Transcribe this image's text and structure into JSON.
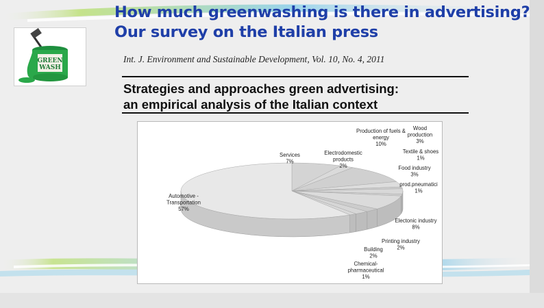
{
  "slide": {
    "title_line1": "How much greenwashing is there in advertising?",
    "title_line2": "Our survey on the Italian press",
    "citation": "Int. J. Environment and Sustainable Development, Vol. 10, No. 4, 2011",
    "paper_title_line1": "Strategies and approaches green advertising:",
    "paper_title_line2": "an empirical analysis of the Italian context",
    "logo_text_line1": "GREEN",
    "logo_text_line2": "WASH",
    "colors": {
      "title": "#1f3fa8",
      "logo_green": "#2aa84a",
      "swoosh_green": "#9fd24a",
      "swoosh_blue": "#6fc3e8"
    }
  },
  "chart_data": {
    "type": "pie",
    "style": "3d",
    "title": "",
    "slices": [
      {
        "label": "Automotive - Transportation",
        "value": 57,
        "display": "57%"
      },
      {
        "label": "Services",
        "value": 7,
        "display": "7%"
      },
      {
        "label": "Electrodomestic products",
        "value": 2,
        "display": "2%"
      },
      {
        "label": "Production of fuels & energy",
        "value": 10,
        "display": "10%"
      },
      {
        "label": "Wood production",
        "value": 3,
        "display": "3%"
      },
      {
        "label": "Textile & shoes",
        "value": 1,
        "display": "1%"
      },
      {
        "label": "Food industry",
        "value": 3,
        "display": "3%"
      },
      {
        "label": "prod.pneumatici",
        "value": 1,
        "display": "1%"
      },
      {
        "label": "Electonic industry",
        "value": 8,
        "display": "8%"
      },
      {
        "label": "Printing industry",
        "value": 2,
        "display": "2%"
      },
      {
        "label": "Building",
        "value": 2,
        "display": "2%"
      },
      {
        "label": "Chemical-pharmaceutical",
        "value": 1,
        "display": "1%"
      }
    ],
    "label_lines": [
      [
        "Automotive -",
        "Transportation",
        "57%"
      ],
      [
        "Services",
        "7%"
      ],
      [
        "Electrodomestic",
        "products",
        "2%"
      ],
      [
        "Production of fuels &",
        "energy",
        "10%"
      ],
      [
        "Wood",
        "production",
        "3%"
      ],
      [
        "Textile & shoes",
        "1%"
      ],
      [
        "Food industry",
        "3%"
      ],
      [
        "prod.pneumatici",
        "1%"
      ],
      [
        "Electonic industry",
        "8%"
      ],
      [
        "Printing industry",
        "2%"
      ],
      [
        "Building",
        "2%"
      ],
      [
        "Chemical-",
        "pharmaceutical",
        "1%"
      ]
    ]
  }
}
